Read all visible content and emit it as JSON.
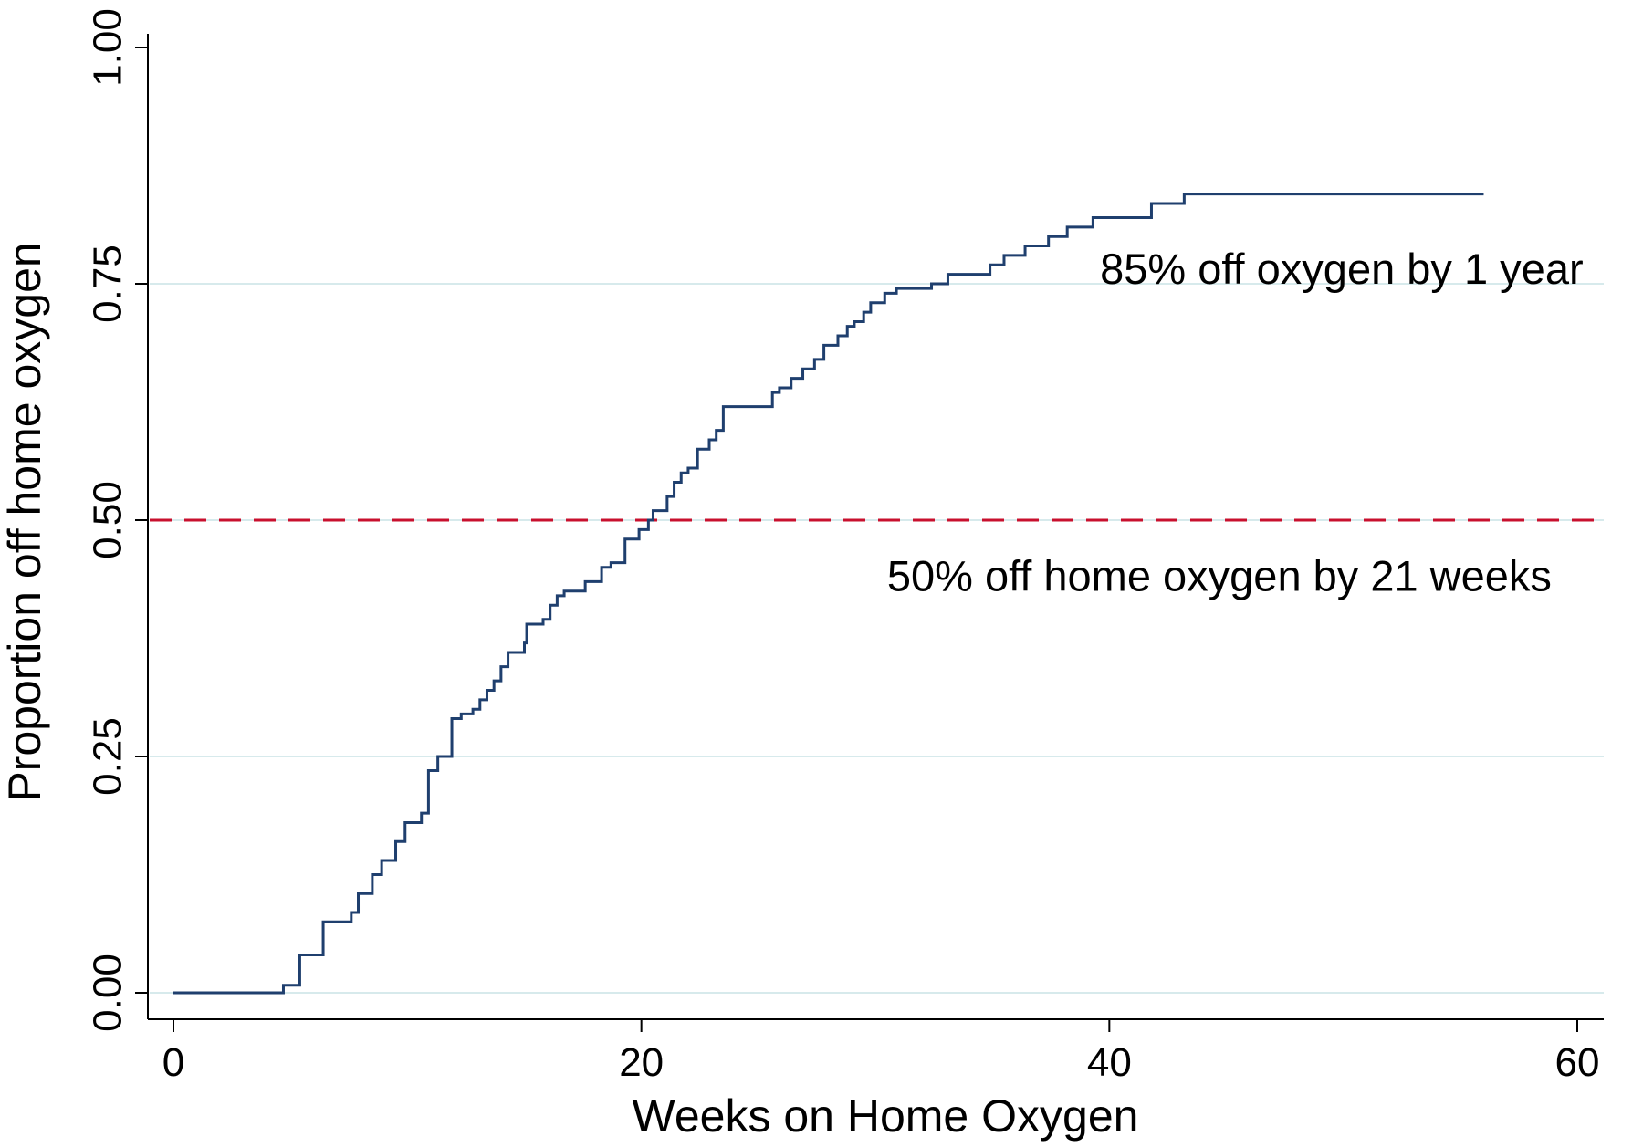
{
  "chart_data": {
    "type": "line",
    "title": "",
    "xlabel": "Weeks on Home Oxygen",
    "ylabel": "Proportion off home oxygen",
    "xlim": [
      -1,
      61
    ],
    "ylim": [
      0,
      1
    ],
    "x_ticks": [
      0,
      20,
      40,
      60
    ],
    "y_ticks": [
      0,
      0.25,
      0.5,
      0.75,
      1.0
    ],
    "x_tick_labels": [
      "0",
      "20",
      "40",
      "60"
    ],
    "y_tick_labels": [
      "0.00",
      "0.25",
      "0.50",
      "0.75",
      "1.00"
    ],
    "grid": "horizontal",
    "grid_color": "#d7eaec",
    "series": [
      {
        "step": "post",
        "color": "#1f3f6e",
        "points": [
          [
            0,
            0.0
          ],
          [
            4.7,
            0.008
          ],
          [
            5.4,
            0.04
          ],
          [
            6.4,
            0.075
          ],
          [
            7.6,
            0.085
          ],
          [
            7.9,
            0.105
          ],
          [
            8.5,
            0.125
          ],
          [
            8.9,
            0.14
          ],
          [
            9.5,
            0.16
          ],
          [
            9.9,
            0.18
          ],
          [
            10.6,
            0.19
          ],
          [
            10.9,
            0.235
          ],
          [
            11.3,
            0.25
          ],
          [
            11.9,
            0.29
          ],
          [
            12.3,
            0.295
          ],
          [
            12.8,
            0.3
          ],
          [
            13.1,
            0.31
          ],
          [
            13.4,
            0.32
          ],
          [
            13.7,
            0.33
          ],
          [
            14.0,
            0.345
          ],
          [
            14.3,
            0.36
          ],
          [
            15.0,
            0.37
          ],
          [
            15.1,
            0.39
          ],
          [
            15.8,
            0.395
          ],
          [
            16.1,
            0.41
          ],
          [
            16.4,
            0.42
          ],
          [
            16.7,
            0.425
          ],
          [
            17.6,
            0.435
          ],
          [
            18.3,
            0.45
          ],
          [
            18.7,
            0.455
          ],
          [
            19.3,
            0.48
          ],
          [
            19.9,
            0.49
          ],
          [
            20.3,
            0.5
          ],
          [
            20.5,
            0.51
          ],
          [
            21.1,
            0.525
          ],
          [
            21.4,
            0.54
          ],
          [
            21.7,
            0.55
          ],
          [
            22.0,
            0.555
          ],
          [
            22.4,
            0.575
          ],
          [
            22.9,
            0.585
          ],
          [
            23.2,
            0.595
          ],
          [
            23.5,
            0.62
          ],
          [
            25.6,
            0.635
          ],
          [
            25.9,
            0.64
          ],
          [
            26.4,
            0.65
          ],
          [
            26.9,
            0.66
          ],
          [
            27.4,
            0.67
          ],
          [
            27.8,
            0.685
          ],
          [
            28.4,
            0.695
          ],
          [
            28.8,
            0.705
          ],
          [
            29.1,
            0.71
          ],
          [
            29.5,
            0.72
          ],
          [
            29.8,
            0.73
          ],
          [
            30.4,
            0.74
          ],
          [
            30.9,
            0.745
          ],
          [
            32.4,
            0.75
          ],
          [
            33.1,
            0.76
          ],
          [
            34.9,
            0.77
          ],
          [
            35.5,
            0.78
          ],
          [
            36.4,
            0.79
          ],
          [
            37.4,
            0.8
          ],
          [
            38.2,
            0.81
          ],
          [
            39.3,
            0.82
          ],
          [
            41.8,
            0.835
          ],
          [
            43.2,
            0.845
          ],
          [
            56.0,
            0.845
          ]
        ]
      }
    ],
    "reference_lines": [
      {
        "axis": "y",
        "value": 0.5,
        "style": "dashed",
        "color": "#c8102e"
      }
    ],
    "annotations": [
      {
        "text": "85% off oxygen by 1 year",
        "x": 39.6,
        "y": 0.75
      },
      {
        "text": "50% off home oxygen by 21 weeks",
        "x": 30.5,
        "y": 0.425
      }
    ]
  }
}
